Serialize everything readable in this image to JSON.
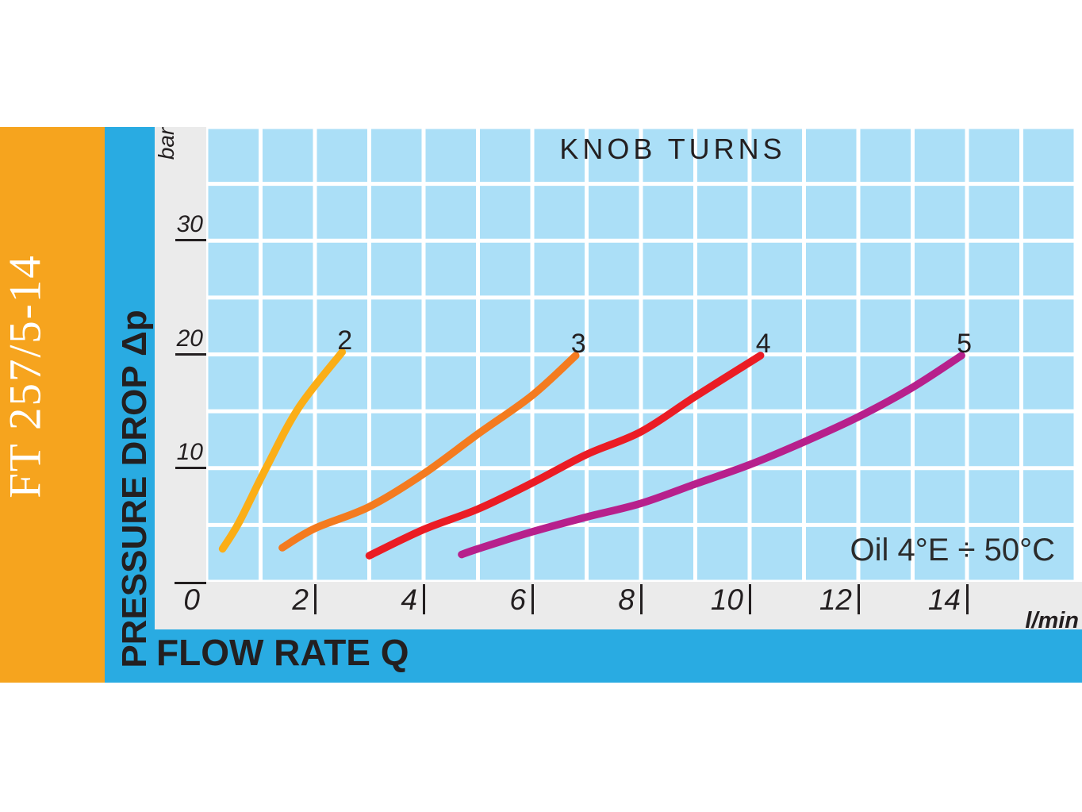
{
  "page": {
    "model": "FT 257/5-14"
  },
  "colors": {
    "band_orange": "#F6A41E",
    "band_cyan": "#29ABE2",
    "panel_gray": "#EBEBEB",
    "grid_cell": "#ABDFF7",
    "grid_line": "#FFFFFF",
    "text_dark": "#231F20",
    "model_text": "#FFFFFF"
  },
  "chart_data": {
    "type": "line",
    "title": "KNOB TURNS",
    "xlabel": "FLOW RATE Q",
    "ylabel": "PRESSURE DROP Δp",
    "x_unit": "l/min",
    "y_unit": "bar",
    "xlim": [
      0,
      16
    ],
    "ylim": [
      0,
      40
    ],
    "x_ticks": [
      0,
      2,
      4,
      6,
      8,
      10,
      12,
      14
    ],
    "y_ticks": [
      10,
      20,
      30
    ],
    "grid": {
      "x_step": 1,
      "y_step": 5,
      "cell_color": "#ABDFF7",
      "line_color": "#FFFFFF"
    },
    "annotation": "Oil 4°E ÷ 50°C",
    "legend_position": "labels-at-curve-ends",
    "series": [
      {
        "label": "2",
        "color": "#FBAE17",
        "points": [
          [
            0.3,
            2.9
          ],
          [
            0.6,
            5.2
          ],
          [
            1.1,
            10.0
          ],
          [
            1.7,
            15.3
          ],
          [
            2.5,
            20.2
          ]
        ]
      },
      {
        "label": "3",
        "color": "#F47B1F",
        "points": [
          [
            1.4,
            3.0
          ],
          [
            2.0,
            4.7
          ],
          [
            3.0,
            6.6
          ],
          [
            4.0,
            9.5
          ],
          [
            5.0,
            13.0
          ],
          [
            6.0,
            16.4
          ],
          [
            6.8,
            19.9
          ]
        ]
      },
      {
        "label": "4",
        "color": "#EB1C24",
        "points": [
          [
            3.0,
            2.3
          ],
          [
            4.0,
            4.6
          ],
          [
            5.0,
            6.4
          ],
          [
            6.0,
            8.7
          ],
          [
            7.0,
            11.2
          ],
          [
            8.0,
            13.2
          ],
          [
            9.0,
            16.3
          ],
          [
            10.2,
            19.9
          ]
        ]
      },
      {
        "label": "5",
        "color": "#B7208C",
        "points": [
          [
            4.7,
            2.4
          ],
          [
            5.0,
            2.9
          ],
          [
            6.0,
            4.4
          ],
          [
            7.0,
            5.7
          ],
          [
            8.0,
            6.9
          ],
          [
            9.0,
            8.6
          ],
          [
            10.0,
            10.3
          ],
          [
            11.0,
            12.3
          ],
          [
            12.0,
            14.5
          ],
          [
            13.0,
            17.1
          ],
          [
            13.9,
            19.9
          ]
        ]
      }
    ]
  }
}
